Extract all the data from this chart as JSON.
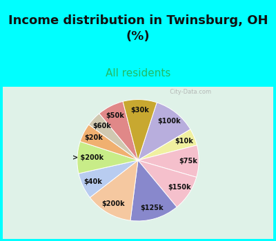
{
  "title": "Income distribution in Twinsburg, OH\n(%)",
  "subtitle": "All residents",
  "bg_cyan": "#00FFFF",
  "bg_chart": "#e0f2ea",
  "labels": [
    "$100k",
    "$10k",
    "$75k",
    "$150k",
    "$125k",
    "$200k",
    "$40k",
    "> $200k",
    "$20k",
    "$60k",
    "$50k",
    "$30k"
  ],
  "values": [
    11.5,
    4.5,
    8.5,
    9.5,
    13.0,
    12.5,
    7.0,
    8.5,
    5.0,
    4.0,
    7.0,
    9.0
  ],
  "colors": [
    "#b8aedd",
    "#f0f0a0",
    "#f5c0cc",
    "#f5c0cc",
    "#8888cc",
    "#f5c8a0",
    "#b8ccf0",
    "#c8ec88",
    "#f0b070",
    "#d0c8b0",
    "#e08888",
    "#c8a830"
  ],
  "watermark": "  City-Data.com",
  "title_fontsize": 13,
  "subtitle_fontsize": 11,
  "label_fontsize": 7
}
